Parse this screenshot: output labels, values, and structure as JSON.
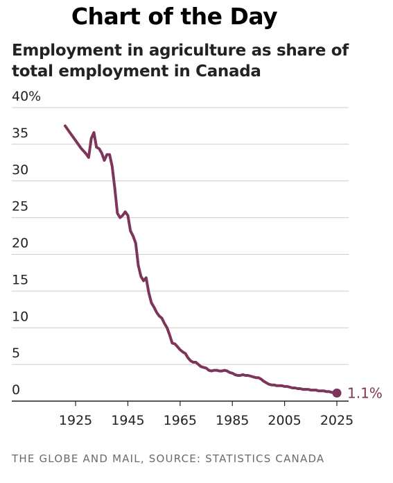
{
  "header": {
    "banner": "Chart of the Day"
  },
  "footer": {
    "credit": "THE GLOBE AND MAIL, SOURCE: STATISTICS CANADA"
  },
  "colors": {
    "series": "#7d3559",
    "grid": "#cccccc",
    "axis": "#222222",
    "text": "#222222"
  },
  "chart_data": {
    "type": "line",
    "title": "Employment in agriculture as share of total employment in Canada",
    "title_lines": [
      "Employment in agriculture as share of",
      "total employment in Canada"
    ],
    "xlabel": "",
    "ylabel": "",
    "xlim": [
      1915,
      2030
    ],
    "ylim": [
      0,
      40
    ],
    "xticks": [
      1925,
      1945,
      1965,
      1985,
      2005,
      2025
    ],
    "yticks": [
      0,
      5,
      10,
      15,
      20,
      25,
      30,
      35,
      40
    ],
    "ytick_labels": [
      "0",
      "5",
      "10",
      "15",
      "20",
      "25",
      "30",
      "35",
      "40%"
    ],
    "grid": true,
    "end_label": "1.1%",
    "series": [
      {
        "x": [
          1921,
          1923,
          1925,
          1927,
          1929,
          1930,
          1931,
          1932,
          1933,
          1934,
          1935,
          1936,
          1937,
          1938,
          1939,
          1940,
          1941,
          1942,
          1943,
          1944,
          1945,
          1946,
          1947,
          1948,
          1949,
          1950,
          1951,
          1952,
          1953,
          1954,
          1955,
          1956,
          1957,
          1958,
          1959,
          1960,
          1961,
          1962,
          1963,
          1964,
          1965,
          1966,
          1967,
          1968,
          1969,
          1970,
          1971,
          1972,
          1973,
          1974,
          1975,
          1976,
          1977,
          1978,
          1979,
          1980,
          1981,
          1982,
          1983,
          1984,
          1985,
          1986,
          1987,
          1988,
          1989,
          1990,
          1991,
          1992,
          1993,
          1994,
          1995,
          1996,
          1997,
          1998,
          1999,
          2000,
          2001,
          2002,
          2003,
          2004,
          2005,
          2006,
          2007,
          2008,
          2009,
          2010,
          2011,
          2012,
          2013,
          2014,
          2015,
          2016,
          2017,
          2018,
          2019,
          2020,
          2021,
          2022,
          2023,
          2024,
          2025
        ],
        "y": [
          37.5,
          36.5,
          35.5,
          34.5,
          33.7,
          33.2,
          35.8,
          36.6,
          34.6,
          34.4,
          33.8,
          32.8,
          33.6,
          33.6,
          32.0,
          29.0,
          25.6,
          25.0,
          25.3,
          25.8,
          25.3,
          23.2,
          22.5,
          21.5,
          18.5,
          17.0,
          16.4,
          16.8,
          14.8,
          13.4,
          12.8,
          12.1,
          11.6,
          11.3,
          10.6,
          10.0,
          9.0,
          7.9,
          7.8,
          7.4,
          7.0,
          6.7,
          6.5,
          5.9,
          5.5,
          5.3,
          5.3,
          5.0,
          4.7,
          4.6,
          4.5,
          4.2,
          4.1,
          4.2,
          4.2,
          4.1,
          4.1,
          4.2,
          4.1,
          3.9,
          3.8,
          3.6,
          3.5,
          3.5,
          3.6,
          3.5,
          3.5,
          3.4,
          3.3,
          3.2,
          3.2,
          3.0,
          2.7,
          2.5,
          2.3,
          2.2,
          2.2,
          2.1,
          2.1,
          2.1,
          2.0,
          2.0,
          1.9,
          1.8,
          1.8,
          1.7,
          1.7,
          1.6,
          1.6,
          1.6,
          1.5,
          1.5,
          1.5,
          1.4,
          1.4,
          1.4,
          1.3,
          1.3,
          1.2,
          1.1,
          1.1
        ]
      }
    ]
  }
}
